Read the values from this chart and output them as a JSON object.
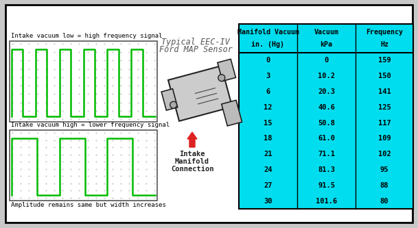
{
  "bg_color": "#c8c8c8",
  "panel_bg": "#ffffff",
  "grid_color": "#888888",
  "grid_alpha": 0.5,
  "signal_color": "#00bb00",
  "signal_linewidth": 1.8,
  "label_top1": "Intake vacuum low = high frequency signal",
  "label_top2": "Intake vacuum high = lower frequency signal",
  "label_bottom": "Amplitude remains same but width increases",
  "center_title_line1": "Typical EEC-IV",
  "center_title_line2": "Ford MAP Sensor",
  "arrow_label_line1": "Intake",
  "arrow_label_line2": "Manifold",
  "arrow_label_line3": "Connection",
  "arrow_color": "#dd2222",
  "table_bg": "#00ddee",
  "table_border_color": "#000000",
  "rows": [
    [
      "0",
      "0",
      "159"
    ],
    [
      "3",
      "10.2",
      "150"
    ],
    [
      "6",
      "20.3",
      "141"
    ],
    [
      "12",
      "40.6",
      "125"
    ],
    [
      "15",
      "50.8",
      "117"
    ],
    [
      "18",
      "61.0",
      "109"
    ],
    [
      "21",
      "71.1",
      "102"
    ],
    [
      "24",
      "81.3",
      "95"
    ],
    [
      "27",
      "91.5",
      "88"
    ],
    [
      "30",
      "101.6",
      "80"
    ]
  ]
}
